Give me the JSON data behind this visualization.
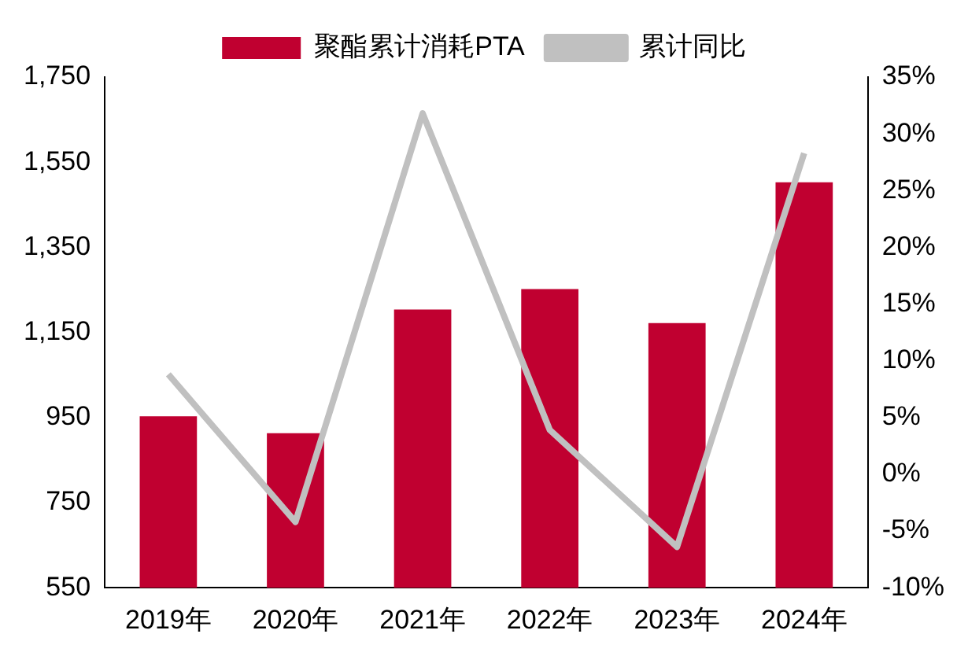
{
  "chart_data": {
    "type": "bar",
    "categories": [
      "2019年",
      "2020年",
      "2021年",
      "2022年",
      "2023年",
      "2024年"
    ],
    "series": [
      {
        "name": "聚酯累计消耗PTA",
        "color": "#c00030",
        "values": [
          953,
          913,
          1204,
          1252,
          1172,
          1503
        ]
      },
      {
        "name": "累计同比",
        "type": "line",
        "axis": "y2",
        "color": "#c0c0c0",
        "marker": "none",
        "values": [
          8.8,
          -4.2,
          31.8,
          3.9,
          -6.4,
          28.3
        ]
      }
    ],
    "ylim": [
      550,
      1750
    ],
    "yticks": [
      {
        "value": 550,
        "label": "550"
      },
      {
        "value": 750,
        "label": "750"
      },
      {
        "value": 950,
        "label": "950"
      },
      {
        "value": 1150,
        "label": "1,150"
      },
      {
        "value": 1350,
        "label": "1,350"
      },
      {
        "value": 1550,
        "label": "1,550"
      },
      {
        "value": 1750,
        "label": "1,750"
      }
    ],
    "y2lim": [
      -10,
      35
    ],
    "y2ticks": [
      {
        "value": -10,
        "label": "-10%"
      },
      {
        "value": -5,
        "label": "-5%"
      },
      {
        "value": 0,
        "label": "0%"
      },
      {
        "value": 5,
        "label": "5%"
      },
      {
        "value": 10,
        "label": "10%"
      },
      {
        "value": 15,
        "label": "15%"
      },
      {
        "value": 20,
        "label": "20%"
      },
      {
        "value": 25,
        "label": "25%"
      },
      {
        "value": 30,
        "label": "30%"
      },
      {
        "value": 35,
        "label": "35%"
      }
    ],
    "grid": false,
    "legend": "top"
  }
}
